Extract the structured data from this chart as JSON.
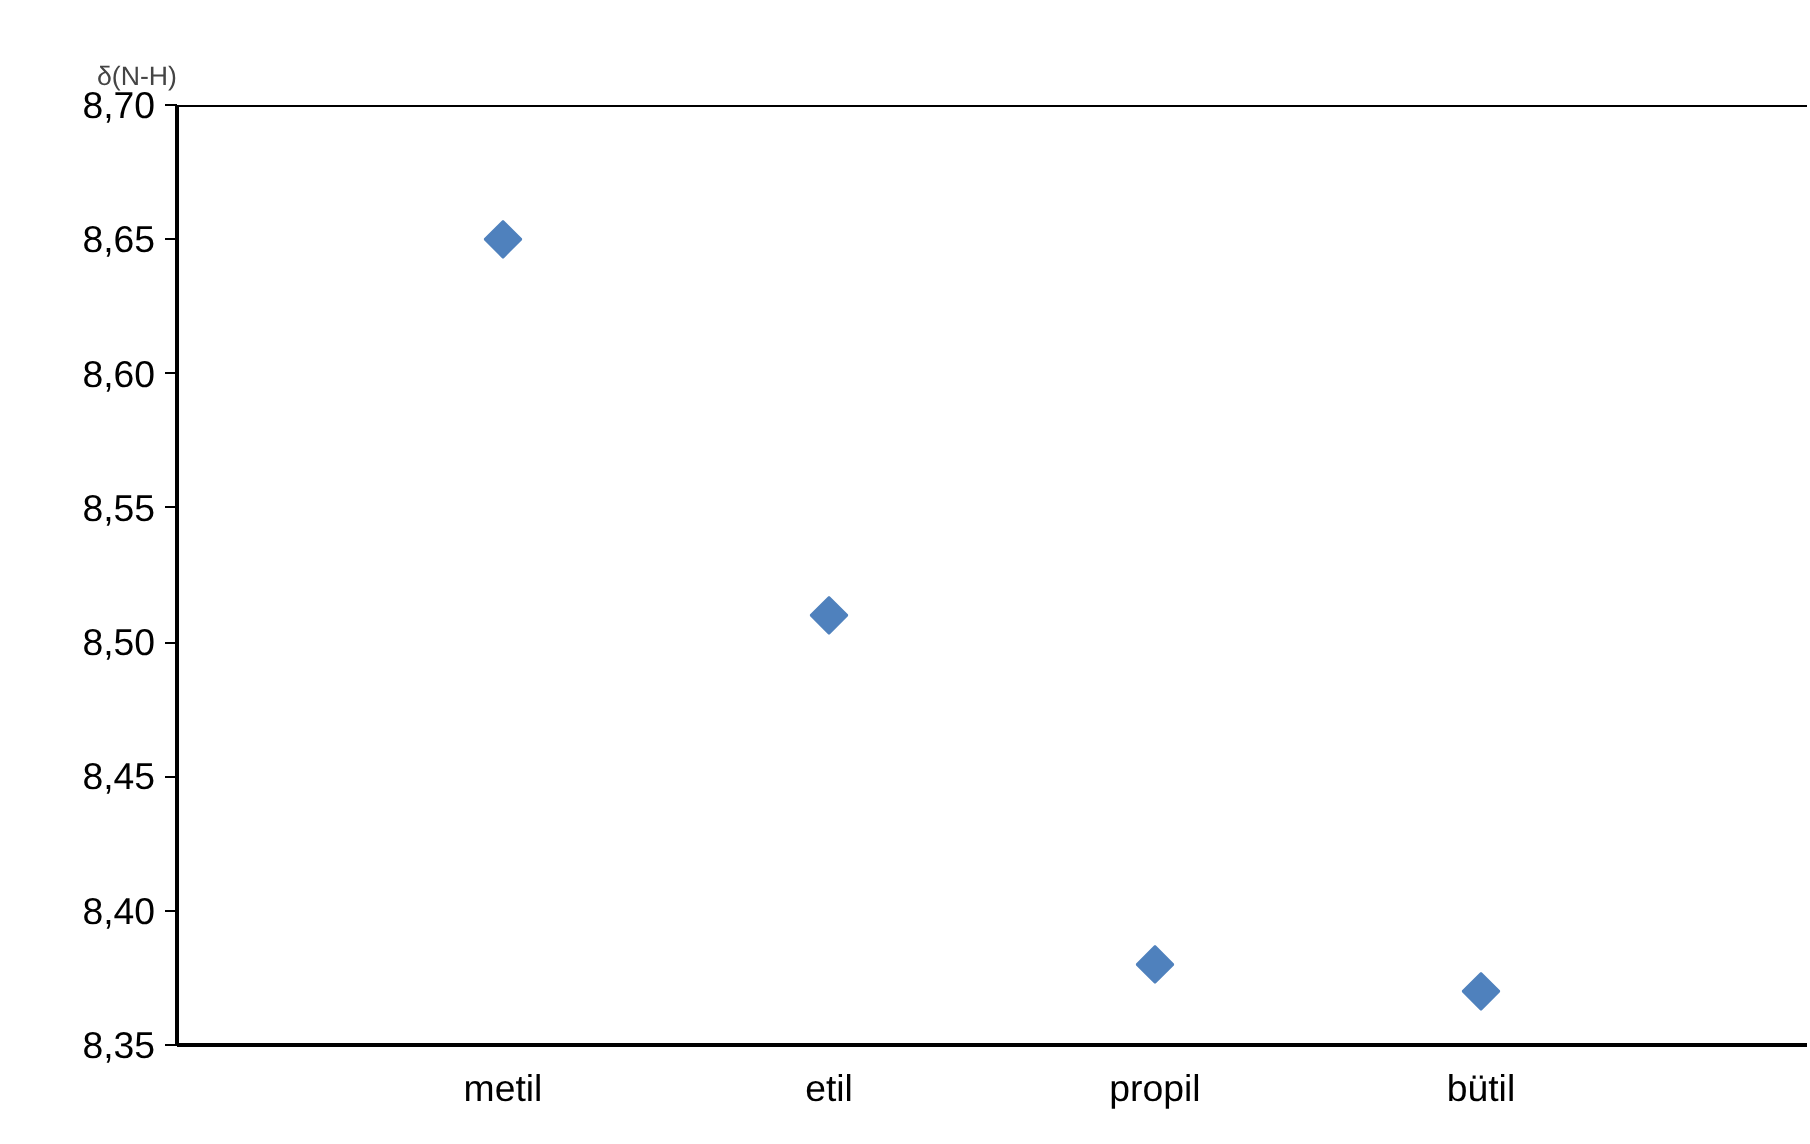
{
  "chart_data": {
    "type": "scatter",
    "ylabel": "δ(N-H)",
    "categories": [
      "metil",
      "etil",
      "propil",
      "bütil"
    ],
    "series": [
      {
        "color": "#4f81bd",
        "values": [
          8.65,
          8.51,
          8.38,
          8.37
        ]
      }
    ],
    "ylim": [
      8.35,
      8.7
    ],
    "yticks": [
      {
        "value": 8.35,
        "label": "8,35"
      },
      {
        "value": 8.4,
        "label": "8,40"
      },
      {
        "value": 8.45,
        "label": "8,45"
      },
      {
        "value": 8.5,
        "label": "8,50"
      },
      {
        "value": 8.55,
        "label": "8,55"
      },
      {
        "value": 8.6,
        "label": "8,60"
      },
      {
        "value": 8.65,
        "label": "8,65"
      },
      {
        "value": 8.7,
        "label": "8,70"
      }
    ],
    "marker": "diamond",
    "grid": false
  }
}
